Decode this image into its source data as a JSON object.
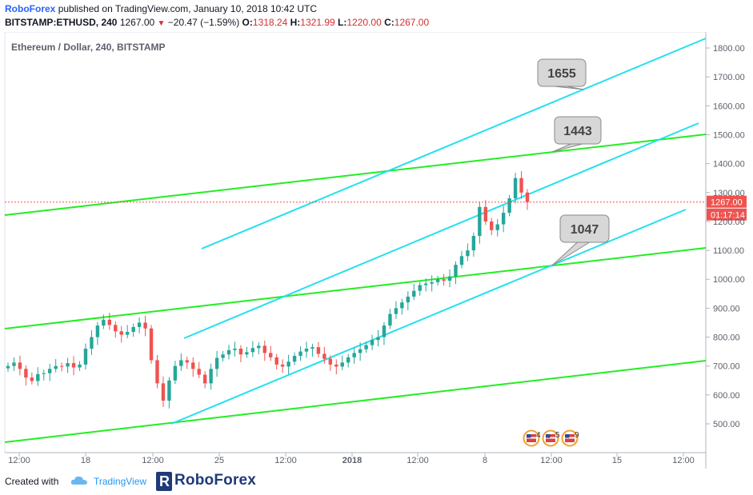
{
  "header": {
    "publisher": "RoboForex",
    "published_text": "published on TradingView.com, January 10, 2018 10:42 UTC",
    "symbol": "BITSTAMP:ETHUSD, 240",
    "last_price": "1267.00",
    "down_arrow": "▼",
    "change": "−20.47 (−1.59%)",
    "ohlc": [
      {
        "key": "O:",
        "value": "1318.24"
      },
      {
        "key": "H:",
        "value": "1321.99"
      },
      {
        "key": "L:",
        "value": "1220.00"
      },
      {
        "key": "C:",
        "value": "1267.00"
      }
    ]
  },
  "chart_title": "Ethereum / Dollar, 240, BITSTAMP",
  "chart_data": {
    "type": "candlestick",
    "y_ticks": [
      500,
      600,
      700,
      800,
      900,
      1000,
      1100,
      1200,
      1300,
      1400,
      1500,
      1600,
      1700,
      1800
    ],
    "y_tick_labels": [
      "500.00",
      "600.00",
      "700.00",
      "800.00",
      "900.00",
      "1000.00",
      "1100.00",
      "1200.00",
      "1300.00",
      "1400.00",
      "1500.00",
      "1600.00",
      "1700.00",
      "1800.00"
    ],
    "ylim": [
      420,
      1830
    ],
    "x_tick_labels": [
      "12:00",
      "18",
      "12:00",
      "25",
      "12:00",
      "2018",
      "12:00",
      "8",
      "12:00",
      "15",
      "12:00"
    ],
    "last_price_label": "1267.00",
    "countdown_label": "01:17:14",
    "current_price": 1267,
    "candles_close_approx": [
      700,
      712,
      690,
      660,
      648,
      672,
      675,
      690,
      700,
      698,
      710,
      695,
      705,
      760,
      800,
      840,
      860,
      842,
      820,
      808,
      818,
      835,
      850,
      830,
      720,
      640,
      580,
      650,
      700,
      720,
      712,
      690,
      670,
      640,
      690,
      728,
      740,
      755,
      760,
      740,
      748,
      762,
      770,
      745,
      730,
      705,
      698,
      715,
      735,
      750,
      760,
      765,
      742,
      725,
      705,
      698,
      712,
      730,
      745,
      758,
      772,
      790,
      800,
      840,
      880,
      900,
      920,
      940,
      960,
      980,
      985,
      990,
      1000,
      995,
      1010,
      1050,
      1080,
      1100,
      1150,
      1250,
      1200,
      1170,
      1190,
      1230,
      1280,
      1350,
      1300,
      1267
    ],
    "annotations": [
      "1655",
      "1443",
      "1047"
    ],
    "event_markers": [
      {
        "icon": "us-flag",
        "count": "4"
      },
      {
        "icon": "us-flag",
        "count": "5"
      },
      {
        "icon": "us-flag",
        "count": "9"
      }
    ],
    "colors": {
      "up": "#26a69a",
      "down": "#ef5350",
      "trend_green": "#22ee22",
      "channel_cyan": "#22e0f0",
      "price_line": "#ef5350",
      "axis_text": "#5d606b"
    }
  },
  "footer": {
    "created_with": "Created with",
    "tradingview": "TradingView",
    "roboforex": "RoboForex",
    "roboforex_letter": "R"
  }
}
